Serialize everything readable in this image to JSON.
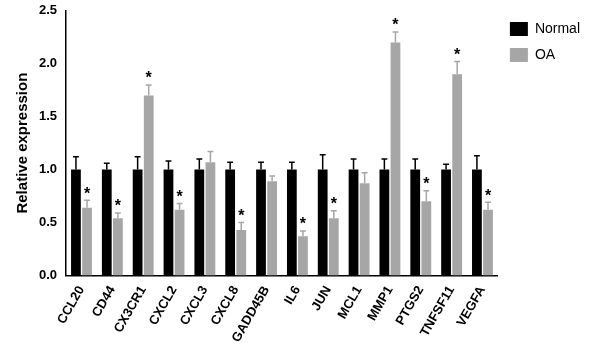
{
  "chart_data": {
    "type": "bar",
    "y_label": "Relative expression",
    "categories": [
      "CCL20",
      "CD44",
      "CX3CR1",
      "CXCL2",
      "CXCL3",
      "CXCL8",
      "GADD45B",
      "IL6",
      "JUN",
      "MCL1",
      "MMP1",
      "PTGS2",
      "TNFSF11",
      "VEGFA"
    ],
    "series": [
      {
        "name": "Normal",
        "color": "#000000",
        "values": [
          1.0,
          1.0,
          1.0,
          1.0,
          1.0,
          1.0,
          1.0,
          1.0,
          1.0,
          1.0,
          1.0,
          1.0,
          1.0,
          1.0
        ],
        "errors": [
          0.12,
          0.06,
          0.12,
          0.08,
          0.1,
          0.07,
          0.07,
          0.07,
          0.14,
          0.1,
          0.1,
          0.1,
          0.05,
          0.13
        ]
      },
      {
        "name": "OA",
        "color": "#a6a6a6",
        "values": [
          0.64,
          0.54,
          1.7,
          0.62,
          1.07,
          0.43,
          0.89,
          0.37,
          0.54,
          0.87,
          2.2,
          0.7,
          1.9,
          0.62
        ],
        "errors": [
          0.07,
          0.05,
          0.1,
          0.06,
          0.1,
          0.07,
          0.05,
          0.05,
          0.07,
          0.1,
          0.1,
          0.1,
          0.12,
          0.07
        ],
        "annotations": [
          "*",
          "*",
          "*",
          "*",
          null,
          "*",
          null,
          "*",
          "*",
          null,
          "*",
          "*",
          "*",
          "*"
        ]
      }
    ],
    "ylim": [
      0,
      2.5
    ],
    "yticks": [
      {
        "value": 0,
        "label": "0.0"
      },
      {
        "value": 0.5,
        "label": "0.5"
      },
      {
        "value": 1,
        "label": "1.0"
      },
      {
        "value": 1.5,
        "label": "1.5"
      },
      {
        "value": 2,
        "label": "2.0"
      },
      {
        "value": 2.5,
        "label": "2.5"
      }
    ],
    "grid": false,
    "legend": "right"
  }
}
